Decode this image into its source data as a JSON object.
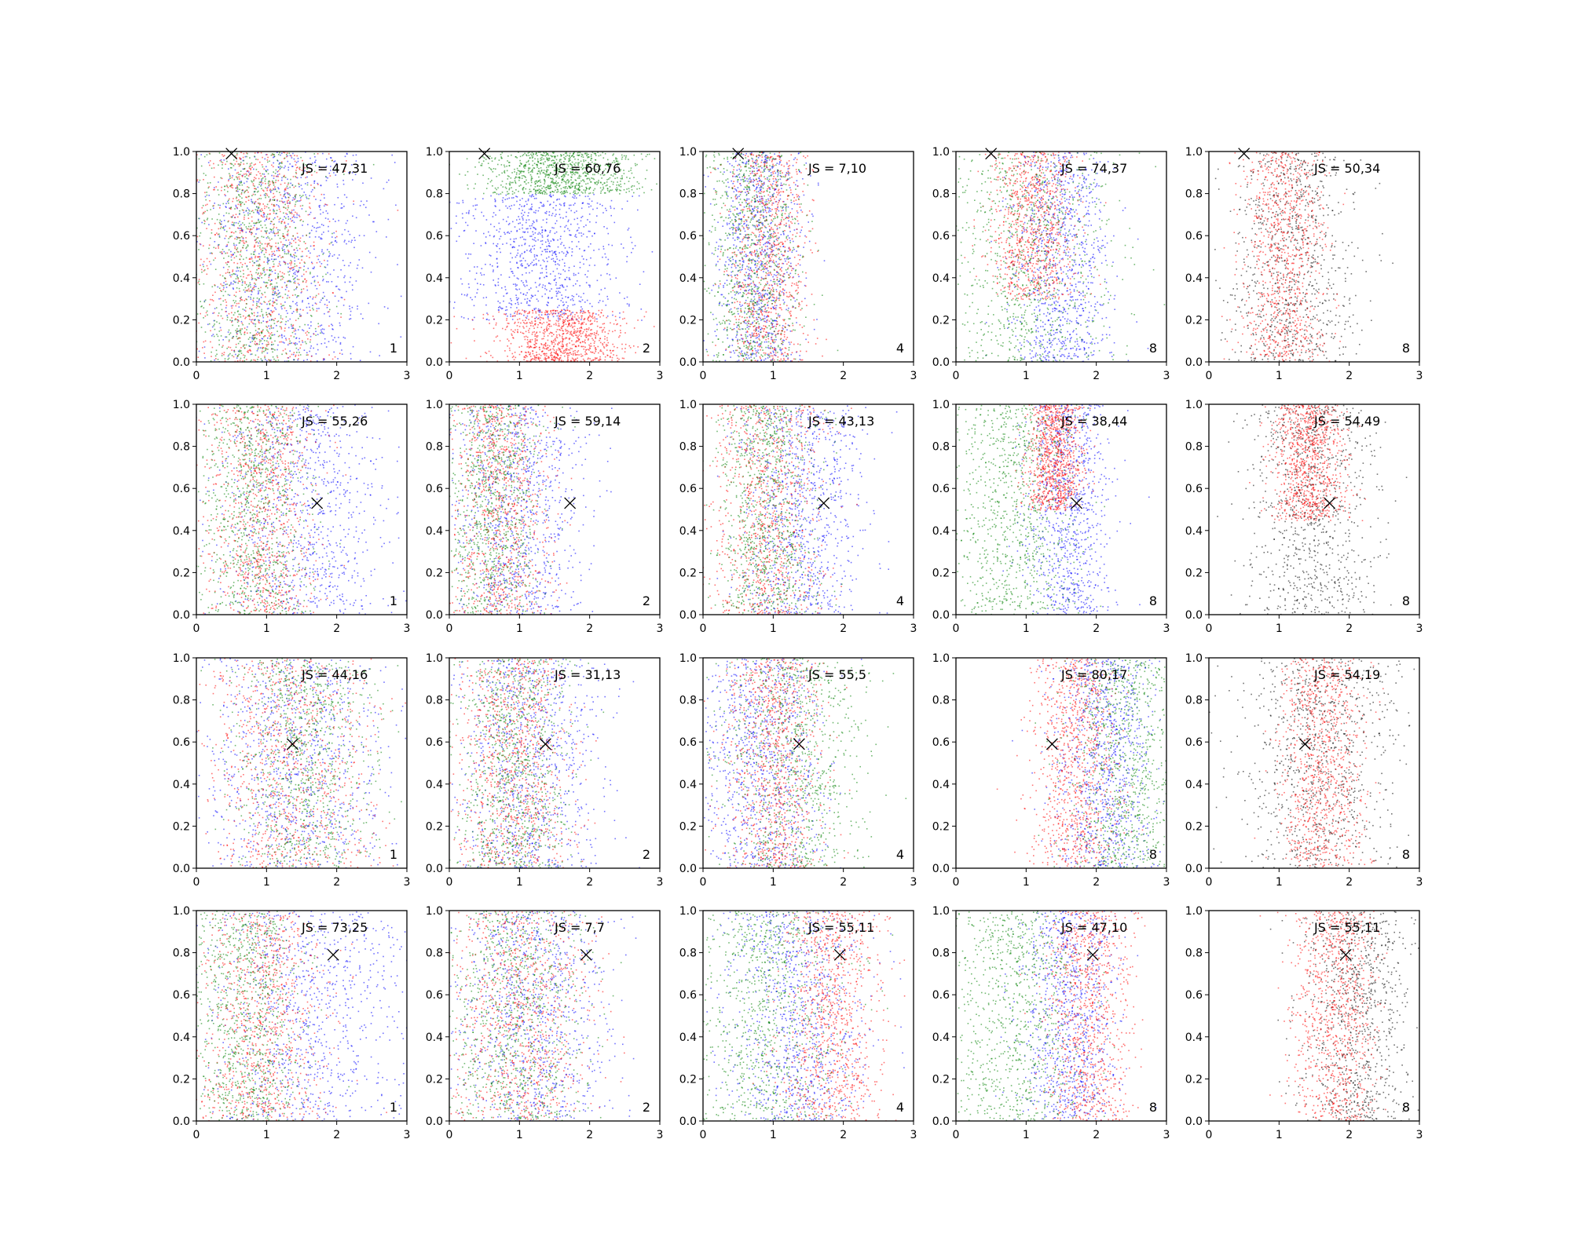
{
  "chart_data": {
    "type": "scatter",
    "layout": {
      "rows": 4,
      "cols": 5
    },
    "xlim": [
      0,
      3
    ],
    "ylim": [
      0,
      1
    ],
    "xticks": [
      "0",
      "1",
      "2",
      "3"
    ],
    "yticks": [
      "0.0",
      "0.2",
      "0.4",
      "0.6",
      "0.8",
      "1.0"
    ],
    "grid": false,
    "colors": {
      "blue": "#0000ff",
      "red": "#ff0000",
      "green": "#008000",
      "black": "#000000"
    },
    "rows": [
      {
        "marker": {
          "x": 0.5,
          "y": 0.99
        },
        "panels": [
          {
            "js_label": "JS = 47,31",
            "k_label": "1",
            "series": [
              {
                "color": "blue",
                "x_mean": 1.3,
                "x_sd": 0.65,
                "y_min": 0.0,
                "y_max": 1.0
              },
              {
                "color": "red",
                "x_mean": 0.9,
                "x_sd": 0.5,
                "y_min": 0.0,
                "y_max": 1.0
              },
              {
                "color": "green",
                "x_mean": 0.8,
                "x_sd": 0.45,
                "y_min": 0.0,
                "y_max": 1.0
              }
            ]
          },
          {
            "js_label": "JS = 60,76",
            "k_label": "2",
            "series": [
              {
                "color": "blue",
                "x_mean": 1.3,
                "x_sd": 0.6,
                "y_min": 0.2,
                "y_max": 0.8
              },
              {
                "color": "red",
                "x_mean": 1.6,
                "x_sd": 0.45,
                "y_min": 0.0,
                "y_max": 0.25
              },
              {
                "color": "green",
                "x_mean": 1.6,
                "x_sd": 0.55,
                "y_min": 0.8,
                "y_max": 1.0
              }
            ]
          },
          {
            "js_label": "JS = 7,10",
            "k_label": "4",
            "series": [
              {
                "color": "blue",
                "x_mean": 0.8,
                "x_sd": 0.3,
                "y_min": 0.0,
                "y_max": 1.0
              },
              {
                "color": "red",
                "x_mean": 0.9,
                "x_sd": 0.3,
                "y_min": 0.0,
                "y_max": 1.0
              },
              {
                "color": "green",
                "x_mean": 0.7,
                "x_sd": 0.35,
                "y_min": 0.0,
                "y_max": 1.0
              }
            ]
          },
          {
            "js_label": "JS = 74,37",
            "k_label": "8",
            "series": [
              {
                "color": "blue",
                "x_mean": 1.5,
                "x_sd": 0.35,
                "y_min": 0.0,
                "y_max": 1.0
              },
              {
                "color": "red",
                "x_mean": 1.1,
                "x_sd": 0.3,
                "y_min": 0.3,
                "y_max": 1.0
              },
              {
                "color": "green",
                "x_mean": 1.0,
                "x_sd": 0.6,
                "y_min": 0.0,
                "y_max": 1.0
              }
            ]
          },
          {
            "js_label": "JS = 50,34",
            "k_label": "8",
            "series": [
              {
                "color": "black",
                "x_mean": 1.2,
                "x_sd": 0.45,
                "y_min": 0.0,
                "y_max": 1.0
              },
              {
                "color": "red",
                "x_mean": 1.05,
                "x_sd": 0.3,
                "y_min": 0.0,
                "y_max": 1.0
              }
            ]
          }
        ]
      },
      {
        "marker": {
          "x": 1.72,
          "y": 0.53
        },
        "panels": [
          {
            "js_label": "JS = 55,26",
            "k_label": "1",
            "series": [
              {
                "color": "blue",
                "x_mean": 1.5,
                "x_sd": 0.6,
                "y_min": 0.0,
                "y_max": 1.0
              },
              {
                "color": "red",
                "x_mean": 0.9,
                "x_sd": 0.4,
                "y_min": 0.0,
                "y_max": 1.0
              },
              {
                "color": "green",
                "x_mean": 0.8,
                "x_sd": 0.4,
                "y_min": 0.0,
                "y_max": 1.0
              }
            ]
          },
          {
            "js_label": "JS = 59,14",
            "k_label": "2",
            "series": [
              {
                "color": "blue",
                "x_mean": 1.0,
                "x_sd": 0.5,
                "y_min": 0.0,
                "y_max": 1.0
              },
              {
                "color": "red",
                "x_mean": 0.7,
                "x_sd": 0.35,
                "y_min": 0.0,
                "y_max": 1.0
              },
              {
                "color": "green",
                "x_mean": 0.6,
                "x_sd": 0.35,
                "y_min": 0.0,
                "y_max": 1.0
              }
            ]
          },
          {
            "js_label": "JS = 43,13",
            "k_label": "4",
            "series": [
              {
                "color": "blue",
                "x_mean": 1.4,
                "x_sd": 0.45,
                "y_min": 0.0,
                "y_max": 1.0
              },
              {
                "color": "red",
                "x_mean": 0.9,
                "x_sd": 0.4,
                "y_min": 0.0,
                "y_max": 1.0
              },
              {
                "color": "green",
                "x_mean": 0.9,
                "x_sd": 0.35,
                "y_min": 0.0,
                "y_max": 1.0
              }
            ]
          },
          {
            "js_label": "JS = 38,44",
            "k_label": "8",
            "series": [
              {
                "color": "blue",
                "x_mean": 1.6,
                "x_sd": 0.3,
                "y_min": 0.0,
                "y_max": 1.0
              },
              {
                "color": "red",
                "x_mean": 1.4,
                "x_sd": 0.2,
                "y_min": 0.5,
                "y_max": 1.0
              },
              {
                "color": "green",
                "x_mean": 0.8,
                "x_sd": 0.45,
                "y_min": 0.0,
                "y_max": 1.0
              }
            ]
          },
          {
            "js_label": "JS = 54,49",
            "k_label": "8",
            "series": [
              {
                "color": "black",
                "x_mean": 1.45,
                "x_sd": 0.45,
                "y_min": 0.0,
                "y_max": 1.0
              },
              {
                "color": "red",
                "x_mean": 1.4,
                "x_sd": 0.25,
                "y_min": 0.45,
                "y_max": 1.0
              }
            ]
          }
        ]
      },
      {
        "marker": {
          "x": 1.37,
          "y": 0.59
        },
        "panels": [
          {
            "js_label": "JS = 44,16",
            "k_label": "1",
            "series": [
              {
                "color": "blue",
                "x_mean": 1.4,
                "x_sd": 0.7,
                "y_min": 0.0,
                "y_max": 1.0
              },
              {
                "color": "red",
                "x_mean": 1.3,
                "x_sd": 0.6,
                "y_min": 0.0,
                "y_max": 1.0
              },
              {
                "color": "green",
                "x_mean": 1.5,
                "x_sd": 0.5,
                "y_min": 0.0,
                "y_max": 1.0
              }
            ]
          },
          {
            "js_label": "JS = 31,13",
            "k_label": "2",
            "series": [
              {
                "color": "blue",
                "x_mean": 1.1,
                "x_sd": 0.5,
                "y_min": 0.0,
                "y_max": 1.0
              },
              {
                "color": "red",
                "x_mean": 0.9,
                "x_sd": 0.4,
                "y_min": 0.0,
                "y_max": 1.0
              },
              {
                "color": "green",
                "x_mean": 0.9,
                "x_sd": 0.4,
                "y_min": 0.0,
                "y_max": 1.0
              }
            ]
          },
          {
            "js_label": "JS = 55,5",
            "k_label": "4",
            "series": [
              {
                "color": "blue",
                "x_mean": 0.8,
                "x_sd": 0.45,
                "y_min": 0.0,
                "y_max": 1.0
              },
              {
                "color": "red",
                "x_mean": 1.0,
                "x_sd": 0.35,
                "y_min": 0.0,
                "y_max": 1.0
              },
              {
                "color": "green",
                "x_mean": 1.3,
                "x_sd": 0.5,
                "y_min": 0.0,
                "y_max": 1.0
              }
            ]
          },
          {
            "js_label": "JS = 80,17",
            "k_label": "8",
            "series": [
              {
                "color": "blue",
                "x_mean": 2.1,
                "x_sd": 0.35,
                "y_min": 0.0,
                "y_max": 1.0
              },
              {
                "color": "red",
                "x_mean": 1.7,
                "x_sd": 0.3,
                "y_min": 0.0,
                "y_max": 1.0
              },
              {
                "color": "green",
                "x_mean": 2.4,
                "x_sd": 0.4,
                "y_min": 0.0,
                "y_max": 1.0
              }
            ]
          },
          {
            "js_label": "JS = 54,19",
            "k_label": "8",
            "series": [
              {
                "color": "black",
                "x_mean": 1.6,
                "x_sd": 0.55,
                "y_min": 0.0,
                "y_max": 1.0
              },
              {
                "color": "red",
                "x_mean": 1.6,
                "x_sd": 0.3,
                "y_min": 0.0,
                "y_max": 1.0
              }
            ]
          }
        ]
      },
      {
        "marker": {
          "x": 1.95,
          "y": 0.79
        },
        "panels": [
          {
            "js_label": "JS = 73,25",
            "k_label": "1",
            "series": [
              {
                "color": "blue",
                "x_mean": 1.6,
                "x_sd": 0.7,
                "y_min": 0.0,
                "y_max": 1.0
              },
              {
                "color": "red",
                "x_mean": 0.9,
                "x_sd": 0.45,
                "y_min": 0.0,
                "y_max": 1.0
              },
              {
                "color": "green",
                "x_mean": 0.7,
                "x_sd": 0.4,
                "y_min": 0.0,
                "y_max": 1.0
              }
            ]
          },
          {
            "js_label": "JS = 7,7",
            "k_label": "2",
            "series": [
              {
                "color": "blue",
                "x_mean": 1.2,
                "x_sd": 0.55,
                "y_min": 0.0,
                "y_max": 1.0
              },
              {
                "color": "red",
                "x_mean": 1.0,
                "x_sd": 0.5,
                "y_min": 0.0,
                "y_max": 1.0
              },
              {
                "color": "green",
                "x_mean": 0.9,
                "x_sd": 0.5,
                "y_min": 0.0,
                "y_max": 1.0
              }
            ]
          },
          {
            "js_label": "JS = 55,11",
            "k_label": "4",
            "series": [
              {
                "color": "blue",
                "x_mean": 1.3,
                "x_sd": 0.5,
                "y_min": 0.0,
                "y_max": 1.0
              },
              {
                "color": "red",
                "x_mean": 1.8,
                "x_sd": 0.35,
                "y_min": 0.0,
                "y_max": 1.0
              },
              {
                "color": "green",
                "x_mean": 0.9,
                "x_sd": 0.55,
                "y_min": 0.0,
                "y_max": 1.0
              }
            ]
          },
          {
            "js_label": "JS = 47,10",
            "k_label": "8",
            "series": [
              {
                "color": "blue",
                "x_mean": 1.6,
                "x_sd": 0.35,
                "y_min": 0.0,
                "y_max": 1.0
              },
              {
                "color": "red",
                "x_mean": 1.9,
                "x_sd": 0.3,
                "y_min": 0.0,
                "y_max": 1.0
              },
              {
                "color": "green",
                "x_mean": 0.8,
                "x_sd": 0.5,
                "y_min": 0.0,
                "y_max": 1.0
              }
            ]
          },
          {
            "js_label": "JS = 55,11",
            "k_label": "8",
            "series": [
              {
                "color": "black",
                "x_mean": 2.1,
                "x_sd": 0.4,
                "y_min": 0.0,
                "y_max": 1.0
              },
              {
                "color": "red",
                "x_mean": 1.8,
                "x_sd": 0.3,
                "y_min": 0.0,
                "y_max": 1.0
              }
            ]
          }
        ]
      }
    ]
  }
}
